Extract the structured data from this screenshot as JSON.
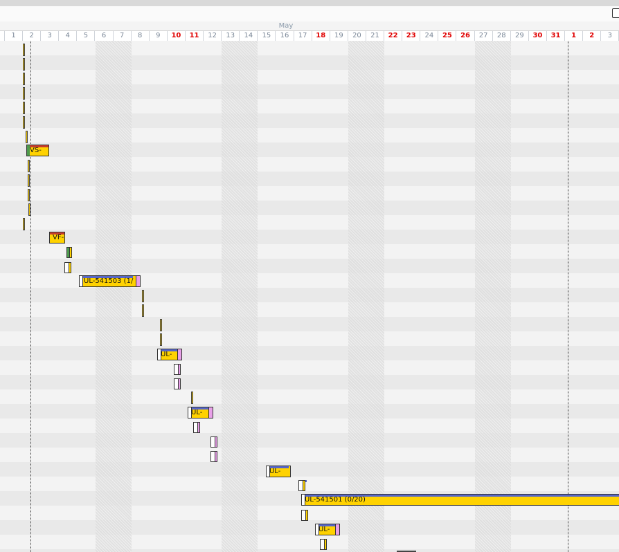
{
  "window": {
    "title": ""
  },
  "timeline": {
    "month": "May",
    "days": [
      {
        "label": "1",
        "red": false
      },
      {
        "label": "2",
        "red": false
      },
      {
        "label": "3",
        "red": false
      },
      {
        "label": "4",
        "red": false
      },
      {
        "label": "5",
        "red": false
      },
      {
        "label": "6",
        "red": false
      },
      {
        "label": "7",
        "red": false
      },
      {
        "label": "8",
        "red": false
      },
      {
        "label": "9",
        "red": false
      },
      {
        "label": "10",
        "red": true
      },
      {
        "label": "11",
        "red": true
      },
      {
        "label": "12",
        "red": false
      },
      {
        "label": "13",
        "red": false
      },
      {
        "label": "14",
        "red": false
      },
      {
        "label": "15",
        "red": false
      },
      {
        "label": "16",
        "red": false
      },
      {
        "label": "17",
        "red": false
      },
      {
        "label": "18",
        "red": true
      },
      {
        "label": "19",
        "red": false
      },
      {
        "label": "20",
        "red": false
      },
      {
        "label": "21",
        "red": false
      },
      {
        "label": "22",
        "red": true
      },
      {
        "label": "23",
        "red": true
      },
      {
        "label": "24",
        "red": false
      },
      {
        "label": "25",
        "red": true
      },
      {
        "label": "26",
        "red": true
      },
      {
        "label": "27",
        "red": false
      },
      {
        "label": "28",
        "red": false
      },
      {
        "label": "29",
        "red": false
      },
      {
        "label": "30",
        "red": true
      },
      {
        "label": "31",
        "red": true
      },
      {
        "label": "1",
        "red": true
      },
      {
        "label": "2",
        "red": true
      },
      {
        "label": "3",
        "red": false
      }
    ]
  },
  "tasks": {
    "vs": {
      "label": "VS-"
    },
    "vf": {
      "label": "VF-"
    },
    "ul_541503": {
      "label": "UL-541503 (1/"
    },
    "ul_a": {
      "label": "UL-"
    },
    "ul_b": {
      "label": "UL-"
    },
    "ul_c": {
      "label": "UL-"
    },
    "ul_541501": {
      "label": "UL-541501 (0/20)"
    },
    "ul_d": {
      "label": "UL-"
    }
  },
  "colors": {
    "task_fill": "#ffd200",
    "header_blue": "#5666c8",
    "header_red": "#c63c2c",
    "holiday_text": "#e00000",
    "pink": "#e8a0e8",
    "green": "#4d9a4d"
  }
}
